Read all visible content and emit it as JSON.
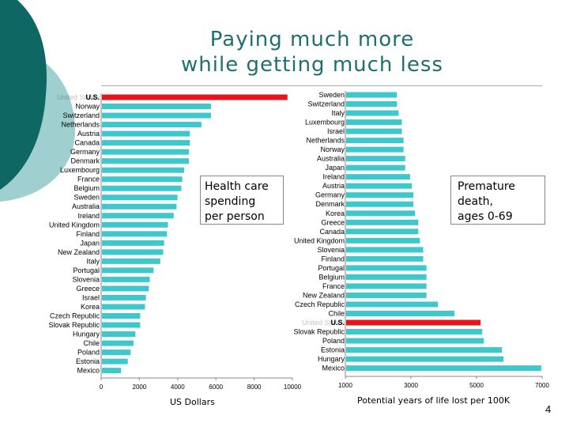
{
  "title_line1": "Paying much more",
  "title_line2": "while getting much less",
  "page_number": "4",
  "callout_left": [
    "Health care",
    "spending",
    "per person"
  ],
  "callout_right": [
    "Premature",
    "death,",
    "ages 0-69"
  ],
  "colors": {
    "bar": "#3fc8cc",
    "highlight": "#e8141c",
    "title": "#1f6f6e",
    "deco_dark": "#0e6763",
    "deco_light": "#9fd0cf"
  },
  "chart_data": [
    {
      "type": "bar",
      "orientation": "horizontal",
      "categories": [
        "United States",
        "Norway",
        "Switzerland",
        "Netherlands",
        "Austria",
        "Canada",
        "Germany",
        "Denmark",
        "Luxembourg",
        "France",
        "Belgium",
        "Sweden",
        "Australia",
        "Ireland",
        "United Kingdom",
        "Finland",
        "Japan",
        "New Zealand",
        "Italy",
        "Portugal",
        "Slovenia",
        "Greece",
        "Israel",
        "Korea",
        "Czech Republic",
        "Slovak Republic",
        "Hungary",
        "Chile",
        "Poland",
        "Estonia",
        "Mexico"
      ],
      "values": [
        9700,
        5700,
        5700,
        5200,
        4600,
        4600,
        4550,
        4550,
        4300,
        4200,
        4150,
        3950,
        3900,
        3750,
        3450,
        3400,
        3250,
        3200,
        3050,
        2700,
        2500,
        2450,
        2300,
        2250,
        2000,
        2000,
        1750,
        1650,
        1500,
        1350,
        1000
      ],
      "highlight_label": "U.S.",
      "highlight_index": 0,
      "xlim": [
        0,
        10000
      ],
      "xticks": [
        0,
        2000,
        4000,
        6000,
        8000,
        10000
      ],
      "xlabel": "US Dollars",
      "title": "Health care spending per person"
    },
    {
      "type": "bar",
      "orientation": "horizontal",
      "categories": [
        "Sweden",
        "Switzerland",
        "Italy",
        "Luxembourg",
        "Israel",
        "Netherlands",
        "Norway",
        "Australia",
        "Japan",
        "Ireland",
        "Austria",
        "Germany",
        "Denmark",
        "Korea",
        "Greece",
        "Canada",
        "United Kingdom",
        "Slovenia",
        "Finland",
        "Portugal",
        "Belgium",
        "France",
        "New Zealand",
        "Czech Republic",
        "Chile",
        "United States",
        "Slovak Republic",
        "Poland",
        "Estonia",
        "Hungary",
        "Mexico"
      ],
      "values": [
        2550,
        2550,
        2600,
        2700,
        2700,
        2750,
        2750,
        2800,
        2800,
        2950,
        3000,
        3050,
        3050,
        3100,
        3200,
        3200,
        3250,
        3350,
        3350,
        3450,
        3450,
        3450,
        3450,
        3800,
        4300,
        5100,
        5150,
        5200,
        5750,
        5800,
        6950
      ],
      "highlight_label": "U.S.",
      "highlight_index": 25,
      "xlim": [
        1000,
        7000
      ],
      "xticks": [
        1000,
        3000,
        5000,
        7000
      ],
      "xlabel": "Potential years of life lost per 100K",
      "title": "Premature death, ages 0-69"
    }
  ]
}
